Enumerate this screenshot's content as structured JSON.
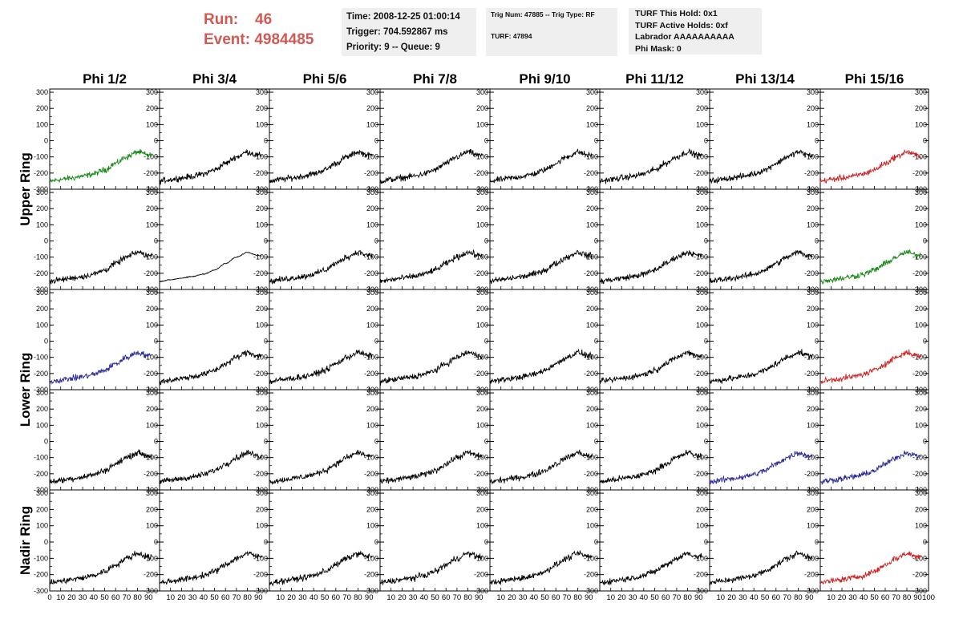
{
  "header": {
    "run_label": "Run:",
    "run_value": "46",
    "event_label": "Event:",
    "event_value": "4984485"
  },
  "info_boxes": {
    "time": {
      "line1": "Time: 2008-12-25 01:00:14",
      "line2": "Trigger: 704.592867 ms",
      "line3": "Priority: 9 -- Queue: 9"
    },
    "trig": {
      "line1": "Trig Num: 47885 -- Trig Type: RF",
      "line2": "TURF: 47894"
    },
    "turf": {
      "line1": "TURF This Hold: 0x1",
      "line2": "TURF Active Holds: 0xf",
      "line3": "Labrador AAAAAAAAAA",
      "line4": "Phi Mask: 0"
    }
  },
  "colors": {
    "header_red": "#cf5a54",
    "box_bg": "#efefef",
    "trace_black": "#000000",
    "trace_green": "#1a8a1a",
    "trace_blue": "#2a2a9a",
    "trace_red": "#cc2222"
  },
  "chart_data": {
    "type": "line",
    "column_labels": [
      "Phi 1/2",
      "Phi 3/4",
      "Phi 5/6",
      "Phi 7/8",
      "Phi 9/10",
      "Phi 11/12",
      "Phi 13/14",
      "Phi 15/16"
    ],
    "ring_labels": [
      "Upper Ring",
      "Lower Ring",
      "Nadir Ring"
    ],
    "ring_rows": [
      [
        0,
        1
      ],
      [
        2,
        3
      ],
      [
        4,
        4
      ]
    ],
    "xlim": [
      0,
      100
    ],
    "ylim": [
      -300,
      320
    ],
    "y_ticks": [
      -300,
      -200,
      -100,
      0,
      100,
      200,
      300
    ],
    "x_ticks_first": [
      0,
      10,
      20,
      30,
      40,
      50,
      60,
      70,
      80,
      90
    ],
    "x_ticks_middle": [
      10,
      20,
      30,
      40,
      50,
      60,
      70,
      80,
      90
    ],
    "x_ticks_last": [
      10,
      20,
      30,
      40,
      50,
      60,
      70,
      80,
      90,
      100
    ],
    "waveform_shape": {
      "x": [
        0,
        10,
        20,
        30,
        40,
        50,
        60,
        70,
        80,
        90
      ],
      "y": [
        -250,
        -240,
        -230,
        -220,
        -205,
        -180,
        -140,
        -100,
        -70,
        -90
      ]
    },
    "trace_colors": [
      [
        "green",
        "black",
        "black",
        "black",
        "black",
        "black",
        "black",
        "red"
      ],
      [
        "black",
        "black",
        "black",
        "black",
        "black",
        "black",
        "black",
        "green"
      ],
      [
        "blue",
        "black",
        "black",
        "black",
        "black",
        "black",
        "black",
        "red"
      ],
      [
        "black",
        "black",
        "black",
        "black",
        "black",
        "black",
        "blue",
        "blue"
      ],
      [
        "black",
        "black",
        "black",
        "black",
        "black",
        "black",
        "black",
        "red"
      ]
    ],
    "smooth_traces": [
      [
        1,
        1
      ]
    ]
  }
}
